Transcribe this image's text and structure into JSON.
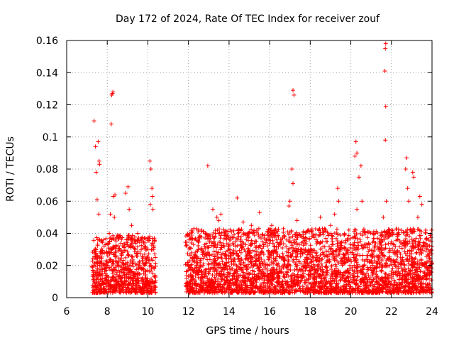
{
  "chart_data": {
    "type": "scatter",
    "title": "Day 172 of 2024, Rate Of TEC Index for receiver zouf",
    "xlabel": "GPS time / hours",
    "ylabel": "ROTI / TECUs",
    "xlim": [
      6,
      24
    ],
    "ylim": [
      0,
      0.16
    ],
    "x_ticks": [
      6,
      8,
      10,
      12,
      14,
      16,
      18,
      20,
      22,
      24
    ],
    "y_ticks": [
      0,
      0.02,
      0.04,
      0.06,
      0.08,
      0.1,
      0.12,
      0.14,
      0.16
    ],
    "x_tick_labels": [
      "6",
      "8",
      "10",
      "12",
      "14",
      "16",
      "18",
      "20",
      "22",
      "24"
    ],
    "y_tick_labels": [
      "0",
      "0.02",
      "0.04",
      "0.06",
      "0.08",
      "0.1",
      "0.12",
      "0.14",
      "0.16"
    ],
    "grid": true,
    "marker": "+",
    "color": "#ff0000",
    "segments": [
      {
        "start": 7.25,
        "end": 10.4,
        "base": 0.014,
        "spread": 0.022
      },
      {
        "start": 11.85,
        "end": 24.0,
        "base": 0.015,
        "spread": 0.025
      }
    ],
    "series": [
      {
        "name": "ROTI",
        "points": [
          [
            7.35,
            0.11
          ],
          [
            7.42,
            0.094
          ],
          [
            7.45,
            0.078
          ],
          [
            7.55,
            0.097
          ],
          [
            7.6,
            0.085
          ],
          [
            7.62,
            0.083
          ],
          [
            7.5,
            0.061
          ],
          [
            7.58,
            0.052
          ],
          [
            7.7,
            0.035
          ],
          [
            8.22,
            0.126
          ],
          [
            8.25,
            0.127
          ],
          [
            8.28,
            0.128
          ],
          [
            8.2,
            0.108
          ],
          [
            8.3,
            0.063
          ],
          [
            8.38,
            0.064
          ],
          [
            8.15,
            0.052
          ],
          [
            8.35,
            0.05
          ],
          [
            8.1,
            0.04
          ],
          [
            8.9,
            0.065
          ],
          [
            9.02,
            0.069
          ],
          [
            9.08,
            0.055
          ],
          [
            9.2,
            0.045
          ],
          [
            9.5,
            0.04
          ],
          [
            10.1,
            0.085
          ],
          [
            10.15,
            0.08
          ],
          [
            10.2,
            0.068
          ],
          [
            10.22,
            0.063
          ],
          [
            10.12,
            0.058
          ],
          [
            10.25,
            0.055
          ],
          [
            12.95,
            0.082
          ],
          [
            13.2,
            0.055
          ],
          [
            13.4,
            0.05
          ],
          [
            13.5,
            0.048
          ],
          [
            13.6,
            0.052
          ],
          [
            14.4,
            0.062
          ],
          [
            14.7,
            0.047
          ],
          [
            15.1,
            0.045
          ],
          [
            15.5,
            0.053
          ],
          [
            16.1,
            0.045
          ],
          [
            17.15,
            0.129
          ],
          [
            17.2,
            0.126
          ],
          [
            17.1,
            0.08
          ],
          [
            17.15,
            0.071
          ],
          [
            17.0,
            0.06
          ],
          [
            16.95,
            0.057
          ],
          [
            17.35,
            0.048
          ],
          [
            18.5,
            0.05
          ],
          [
            18.7,
            0.043
          ],
          [
            19.0,
            0.045
          ],
          [
            19.35,
            0.068
          ],
          [
            19.4,
            0.06
          ],
          [
            19.2,
            0.052
          ],
          [
            20.25,
            0.097
          ],
          [
            20.3,
            0.09
          ],
          [
            20.2,
            0.088
          ],
          [
            20.5,
            0.082
          ],
          [
            20.4,
            0.075
          ],
          [
            20.55,
            0.06
          ],
          [
            20.3,
            0.055
          ],
          [
            21.72,
            0.158
          ],
          [
            21.7,
            0.155
          ],
          [
            21.68,
            0.141
          ],
          [
            21.72,
            0.119
          ],
          [
            21.7,
            0.098
          ],
          [
            21.75,
            0.06
          ],
          [
            21.6,
            0.05
          ],
          [
            22.75,
            0.087
          ],
          [
            22.7,
            0.08
          ],
          [
            23.05,
            0.078
          ],
          [
            23.1,
            0.075
          ],
          [
            22.8,
            0.068
          ],
          [
            22.85,
            0.06
          ],
          [
            23.4,
            0.063
          ],
          [
            23.5,
            0.058
          ],
          [
            23.3,
            0.05
          ]
        ]
      }
    ]
  }
}
